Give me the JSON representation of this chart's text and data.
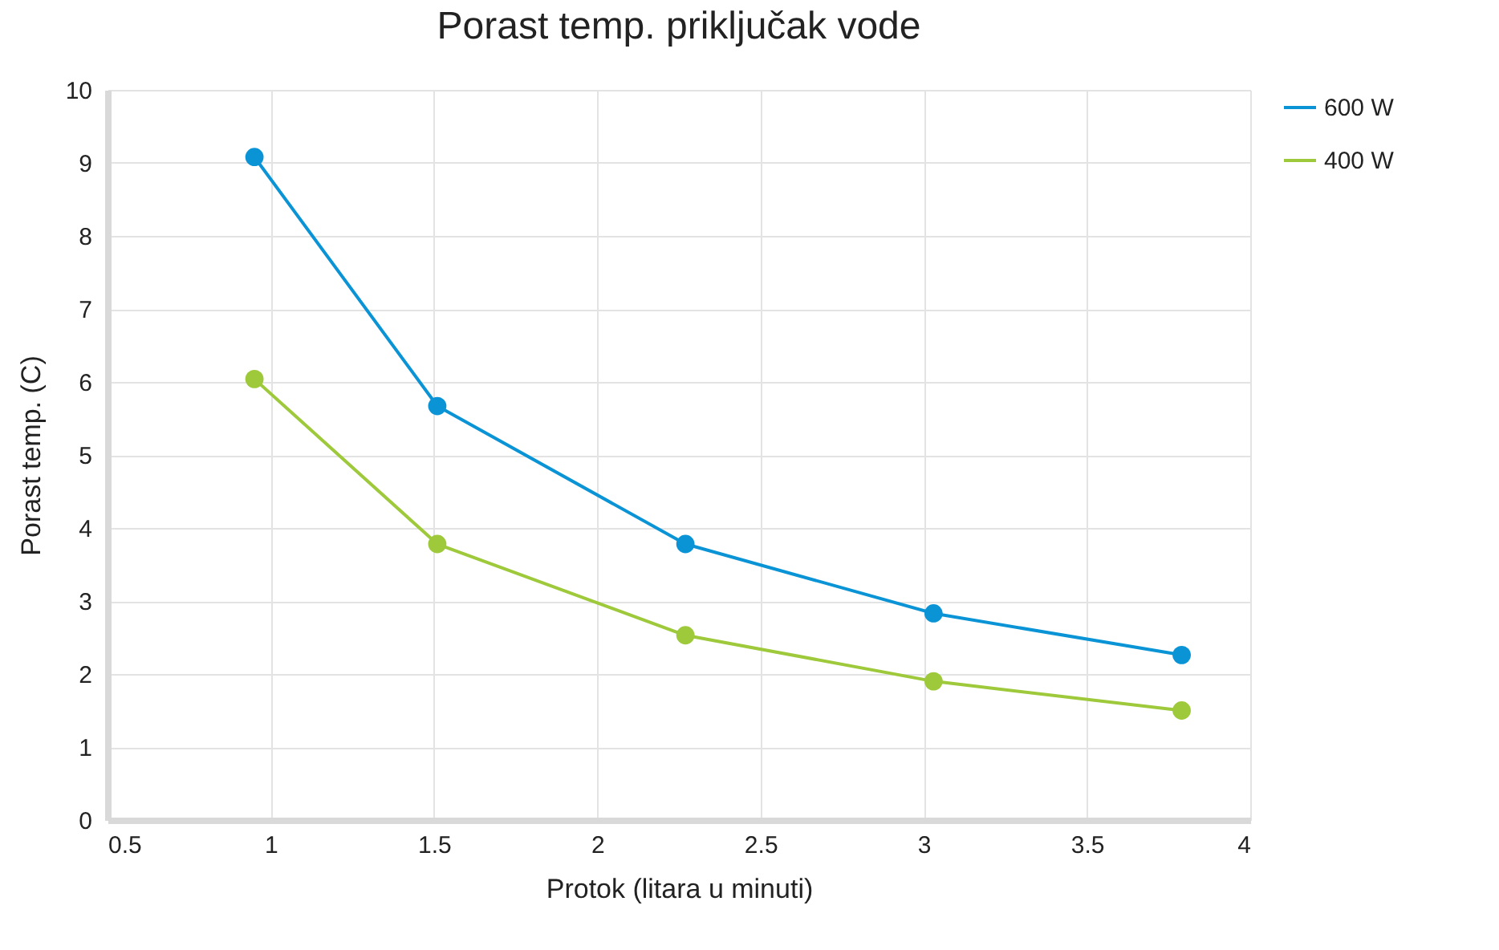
{
  "chart_data": {
    "type": "line",
    "title": "Porast temp. priključak vode",
    "xlabel": "Protok (litara u minuti)",
    "ylabel": "Porast temp. (C)",
    "x": [
      0.95,
      1.51,
      2.27,
      3.03,
      3.79
    ],
    "series": [
      {
        "name": "600 W",
        "color": "#0a94d6",
        "values": [
          9.08,
          5.67,
          3.78,
          2.83,
          2.26
        ]
      },
      {
        "name": "400 W",
        "color": "#9dc93a",
        "values": [
          6.04,
          3.78,
          2.53,
          1.9,
          1.5
        ]
      }
    ],
    "xlim": [
      0.5,
      4
    ],
    "xticks": [
      0.5,
      1,
      1.5,
      2,
      2.5,
      3,
      3.5,
      4
    ],
    "ylim": [
      0,
      10
    ],
    "yticks": [
      0,
      1,
      2,
      3,
      4,
      5,
      6,
      7,
      8,
      9,
      10
    ],
    "grid": true,
    "legend": "right",
    "marker": "circle",
    "line_style": "solid"
  }
}
